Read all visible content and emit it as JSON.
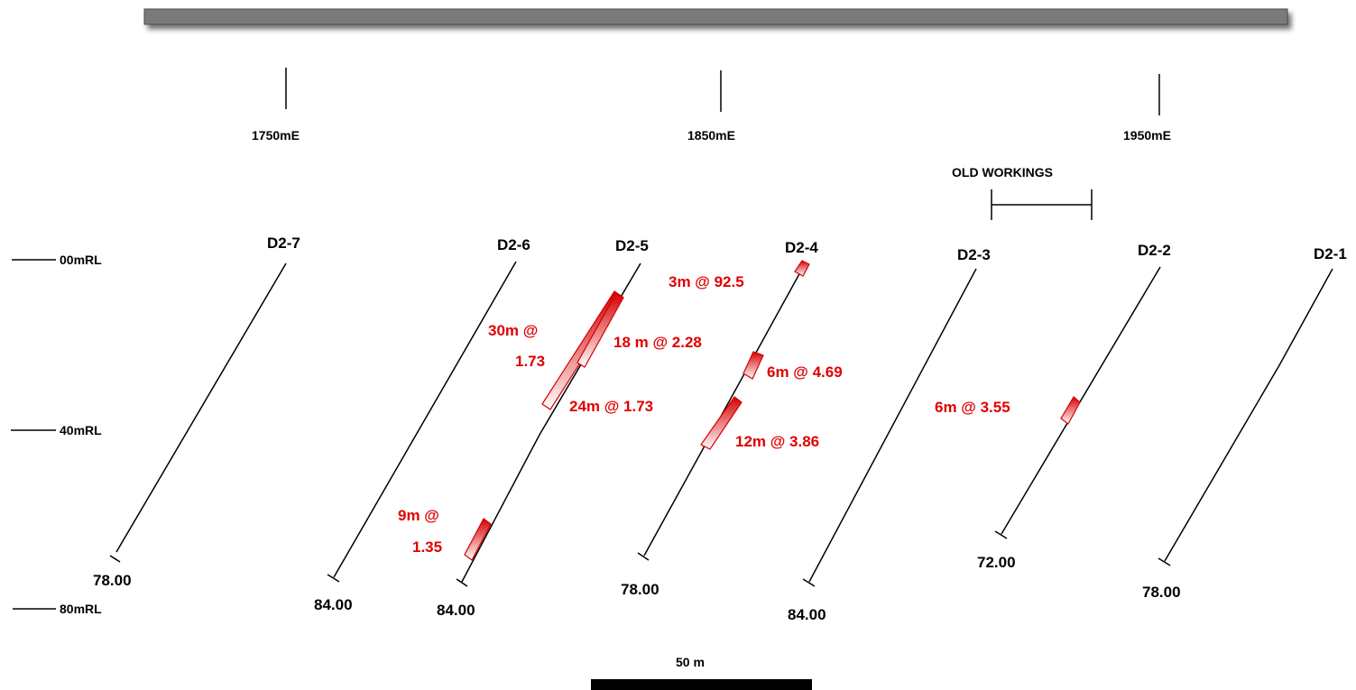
{
  "colors": {
    "trace": "#000000",
    "intercept": "#e00000",
    "surface_bar": "#7a7a7a"
  },
  "eastings": [
    "1750mE",
    "1850mE",
    "1950mE"
  ],
  "reduced_levels": [
    "00mRL",
    "40mRL",
    "80mRL"
  ],
  "old_workings": {
    "label": "OLD WORKINGS"
  },
  "holes": [
    {
      "id": "D2-7",
      "end_depth": "78.00"
    },
    {
      "id": "D2-6",
      "end_depth": "84.00"
    },
    {
      "id": "D2-5",
      "end_depth": "84.00"
    },
    {
      "id": "D2-4",
      "end_depth": "78.00"
    },
    {
      "id": "D2-3",
      "end_depth": "84.00"
    },
    {
      "id": "D2-2",
      "end_depth": "72.00"
    },
    {
      "id": "D2-1",
      "end_depth": "78.00"
    }
  ],
  "intercepts": [
    {
      "hole": "D2-5",
      "lines": [
        "30m @",
        "1.73"
      ]
    },
    {
      "hole": "D2-5",
      "lines": [
        "18 m @ 2.28"
      ]
    },
    {
      "hole": "D2-5",
      "lines": [
        "24m @ 1.73"
      ]
    },
    {
      "hole": "D2-5",
      "lines": [
        "9m @",
        "1.35"
      ]
    },
    {
      "hole": "D2-4",
      "lines": [
        "3m @ 92.5"
      ]
    },
    {
      "hole": "D2-4",
      "lines": [
        "6m @ 4.69"
      ]
    },
    {
      "hole": "D2-4",
      "lines": [
        "12m @ 3.86"
      ]
    },
    {
      "hole": "D2-2",
      "lines": [
        "6m @ 3.55"
      ]
    }
  ],
  "scale_bar": {
    "label": "50 m"
  }
}
